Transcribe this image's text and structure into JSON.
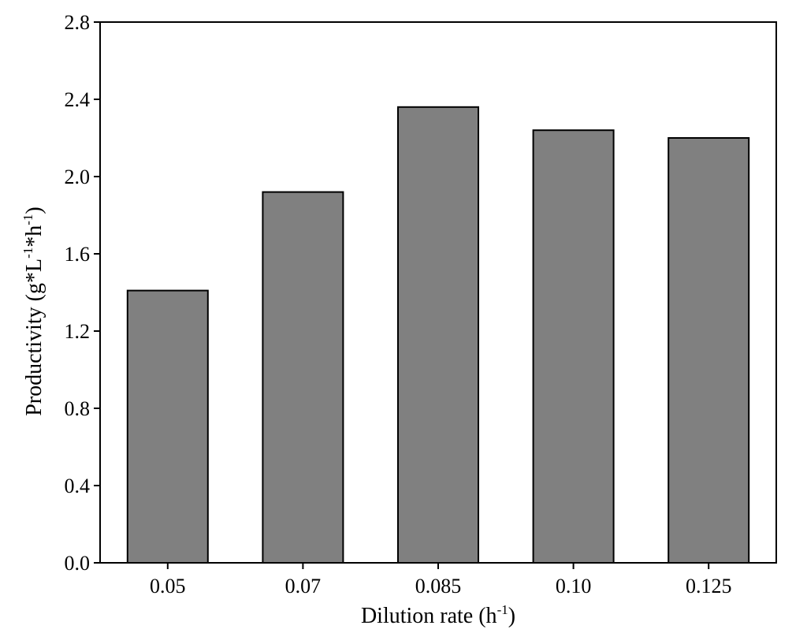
{
  "chart_data": {
    "type": "bar",
    "categories": [
      "0.05",
      "0.07",
      "0.085",
      "0.10",
      "0.125"
    ],
    "values": [
      1.41,
      1.92,
      2.36,
      2.24,
      2.2
    ],
    "title": "",
    "xlabel": {
      "text": "Dilution rate (h",
      "sup": "-1",
      "close": ")"
    },
    "ylabel": {
      "parts": [
        {
          "text": "Productivity (g*L",
          "sup": false
        },
        {
          "text": "-1",
          "sup": true
        },
        {
          "text": "*h",
          "sup": false
        },
        {
          "text": "-1",
          "sup": true
        },
        {
          "text": ")",
          "sup": false
        }
      ]
    },
    "ylim": [
      0,
      2.8
    ],
    "yticks": [
      "0.0",
      "0.4",
      "0.8",
      "1.2",
      "1.6",
      "2.0",
      "2.4",
      "2.8"
    ],
    "ytick_values": [
      0,
      0.4,
      0.8,
      1.2,
      1.6,
      2.0,
      2.4,
      2.8
    ],
    "grid": false,
    "legend": "none",
    "bar_color": "#808080",
    "bar_edge_color": "#000000"
  }
}
